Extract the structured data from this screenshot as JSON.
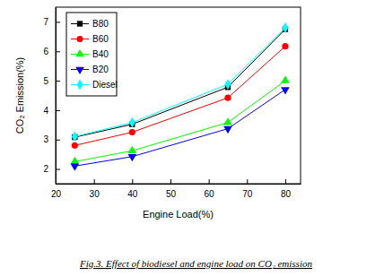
{
  "chart_data": {
    "type": "line",
    "title": "Fig.3. Effect of biodiesel and engine load on CO₂ emission",
    "x_label": "Engine Load(%)",
    "y_label": "CO₂ Emission(%)",
    "x": [
      25,
      40,
      65,
      80
    ],
    "series": [
      {
        "name": "B80",
        "color": "#000000",
        "marker": "square",
        "values": [
          3.08,
          3.52,
          4.78,
          6.75
        ]
      },
      {
        "name": "B60",
        "color": "#ff0000",
        "marker": "circle",
        "values": [
          2.8,
          3.25,
          4.42,
          6.17
        ]
      },
      {
        "name": "B40",
        "color": "#00ff00",
        "marker": "triangle-up",
        "values": [
          2.25,
          2.62,
          3.58,
          5.0
        ]
      },
      {
        "name": "B20",
        "color": "#0000ff",
        "marker": "triangle-down",
        "values": [
          2.1,
          2.42,
          3.37,
          4.7
        ]
      },
      {
        "name": "Diesel",
        "color": "#00ffff",
        "marker": "diamond",
        "values": [
          3.1,
          3.58,
          4.88,
          6.8
        ]
      }
    ],
    "xlim": [
      20,
      84
    ],
    "xticks": [
      20,
      30,
      40,
      50,
      60,
      70,
      80
    ],
    "ylim": [
      1.5,
      7.5
    ],
    "yticks": [
      2,
      3,
      4,
      5,
      6,
      7
    ],
    "legend": "upper left",
    "grid": false
  }
}
